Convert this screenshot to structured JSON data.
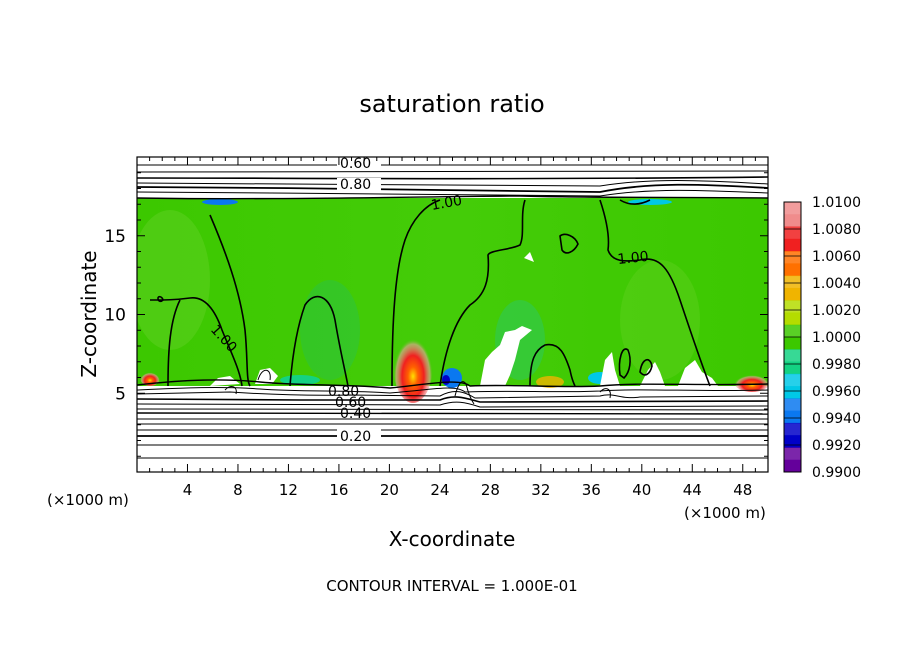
{
  "chart_data": {
    "type": "heatmap",
    "title": "saturation ratio",
    "xlabel": "X-coordinate",
    "ylabel": "Z-coordinate",
    "x_unit_left": "(×1000 m)",
    "x_unit_right": "(×1000 m)",
    "xlim": [
      0,
      50
    ],
    "ylim": [
      0,
      20
    ],
    "x_ticks": [
      "4",
      "8",
      "12",
      "16",
      "20",
      "24",
      "28",
      "32",
      "36",
      "40",
      "44",
      "48"
    ],
    "y_ticks": [
      "5",
      "10",
      "15"
    ],
    "footer": "CONTOUR INTERVAL = 1.000E-01",
    "colorbar": {
      "labels": [
        "1.0100",
        "1.0080",
        "1.0060",
        "1.0040",
        "1.0020",
        "1.0000",
        "0.9980",
        "0.9960",
        "0.9940",
        "0.9920",
        "0.9900"
      ],
      "colors_top_to_bottom": [
        "#f08c8c",
        "#f02020",
        "#ff7000",
        "#f0b400",
        "#b4dc00",
        "#3cc800",
        "#14d282",
        "#00c8e6",
        "#0a78f0",
        "#0000c8",
        "#64009b"
      ]
    },
    "contour_labels": [
      "0.60",
      "0.80",
      "1.00",
      "1.00",
      "1.00",
      "0.80",
      "0.60",
      "0.40",
      "0.20"
    ],
    "contour_interval": 0.1
  }
}
